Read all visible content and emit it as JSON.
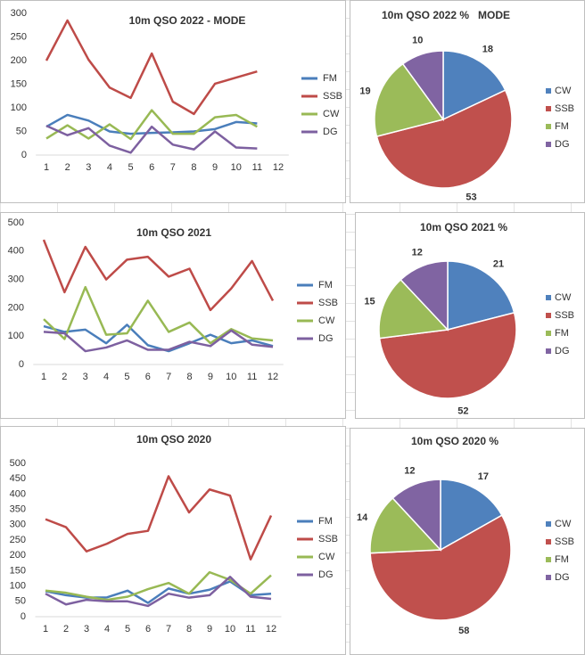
{
  "chart_data": [
    {
      "type": "line",
      "title": "10m QSO 2022 - MODE",
      "categories": [
        "1",
        "2",
        "3",
        "4",
        "5",
        "6",
        "7",
        "8",
        "9",
        "10",
        "11",
        "12"
      ],
      "ylim": [
        0,
        300
      ],
      "yticks": [
        0,
        50,
        100,
        150,
        200,
        250,
        300
      ],
      "grid": false,
      "legend": "right",
      "series": [
        {
          "name": "FM",
          "color": "#4a7ebb",
          "values": [
            60,
            85,
            73,
            50,
            45,
            47,
            48,
            50,
            55,
            70,
            67,
            null
          ]
        },
        {
          "name": "SSB",
          "color": "#be4b48",
          "values": [
            200,
            285,
            202,
            143,
            121,
            215,
            113,
            87,
            151,
            164,
            177,
            null
          ]
        },
        {
          "name": "CW",
          "color": "#98b954",
          "values": [
            35,
            63,
            35,
            65,
            34,
            95,
            45,
            45,
            80,
            85,
            60,
            null
          ]
        },
        {
          "name": "DG",
          "color": "#7d60a0",
          "values": [
            62,
            42,
            57,
            20,
            5,
            60,
            22,
            12,
            50,
            16,
            14,
            null
          ]
        }
      ]
    },
    {
      "type": "pie",
      "title": "10m QSO 2022 %   MODE",
      "legend": "right",
      "categories": [
        "CW",
        "SSB",
        "FM",
        "DG"
      ],
      "values": [
        18,
        53,
        19,
        10
      ],
      "colors": [
        "#4f81bd",
        "#c0504d",
        "#9bbb59",
        "#8064a2"
      ]
    },
    {
      "type": "line",
      "title": "10m QSO 2021",
      "categories": [
        "1",
        "2",
        "3",
        "4",
        "5",
        "6",
        "7",
        "8",
        "9",
        "10",
        "11",
        "12"
      ],
      "ylim": [
        0,
        500
      ],
      "yticks": [
        0,
        100,
        200,
        300,
        400,
        500
      ],
      "grid": false,
      "legend": "right",
      "series": [
        {
          "name": "FM",
          "color": "#4a7ebb",
          "values": [
            135,
            115,
            123,
            75,
            140,
            68,
            47,
            75,
            105,
            75,
            85,
            65
          ]
        },
        {
          "name": "SSB",
          "color": "#be4b48",
          "values": [
            440,
            255,
            415,
            300,
            370,
            380,
            310,
            338,
            192,
            268,
            365,
            225
          ]
        },
        {
          "name": "CW",
          "color": "#98b954",
          "values": [
            160,
            90,
            273,
            105,
            110,
            225,
            115,
            148,
            75,
            125,
            92,
            85
          ]
        },
        {
          "name": "DG",
          "color": "#7d60a0",
          "values": [
            115,
            110,
            47,
            60,
            85,
            52,
            52,
            80,
            65,
            120,
            70,
            62
          ]
        }
      ]
    },
    {
      "type": "pie",
      "title": "10m QSO 2021 %",
      "legend": "right",
      "categories": [
        "CW",
        "SSB",
        "FM",
        "DG"
      ],
      "values": [
        21,
        52,
        15,
        12
      ],
      "colors": [
        "#4f81bd",
        "#c0504d",
        "#9bbb59",
        "#8064a2"
      ]
    },
    {
      "type": "line",
      "title": "10m QSO 2020",
      "categories": [
        "1",
        "2",
        "3",
        "4",
        "5",
        "6",
        "7",
        "8",
        "9",
        "10",
        "11",
        "12"
      ],
      "ylim": [
        0,
        500
      ],
      "yticks": [
        0,
        50,
        100,
        150,
        200,
        250,
        300,
        350,
        400,
        450,
        500
      ],
      "grid": false,
      "legend": "right",
      "series": [
        {
          "name": "FM",
          "color": "#4a7ebb",
          "values": [
            83,
            70,
            62,
            63,
            85,
            45,
            92,
            75,
            88,
            115,
            70,
            75
          ]
        },
        {
          "name": "SSB",
          "color": "#be4b48",
          "values": [
            318,
            292,
            213,
            238,
            270,
            280,
            458,
            340,
            415,
            395,
            187,
            330
          ]
        },
        {
          "name": "CW",
          "color": "#98b954",
          "values": [
            85,
            78,
            65,
            55,
            65,
            90,
            110,
            75,
            145,
            120,
            75,
            135
          ]
        },
        {
          "name": "DG",
          "color": "#7d60a0",
          "values": [
            75,
            40,
            55,
            50,
            50,
            35,
            75,
            62,
            70,
            130,
            65,
            58
          ]
        }
      ]
    },
    {
      "type": "pie",
      "title": "10m QSO 2020 %",
      "legend": "right",
      "categories": [
        "CW",
        "SSB",
        "FM",
        "DG"
      ],
      "values": [
        17,
        58,
        14,
        12
      ],
      "colors": [
        "#4f81bd",
        "#c0504d",
        "#9bbb59",
        "#8064a2"
      ]
    }
  ]
}
